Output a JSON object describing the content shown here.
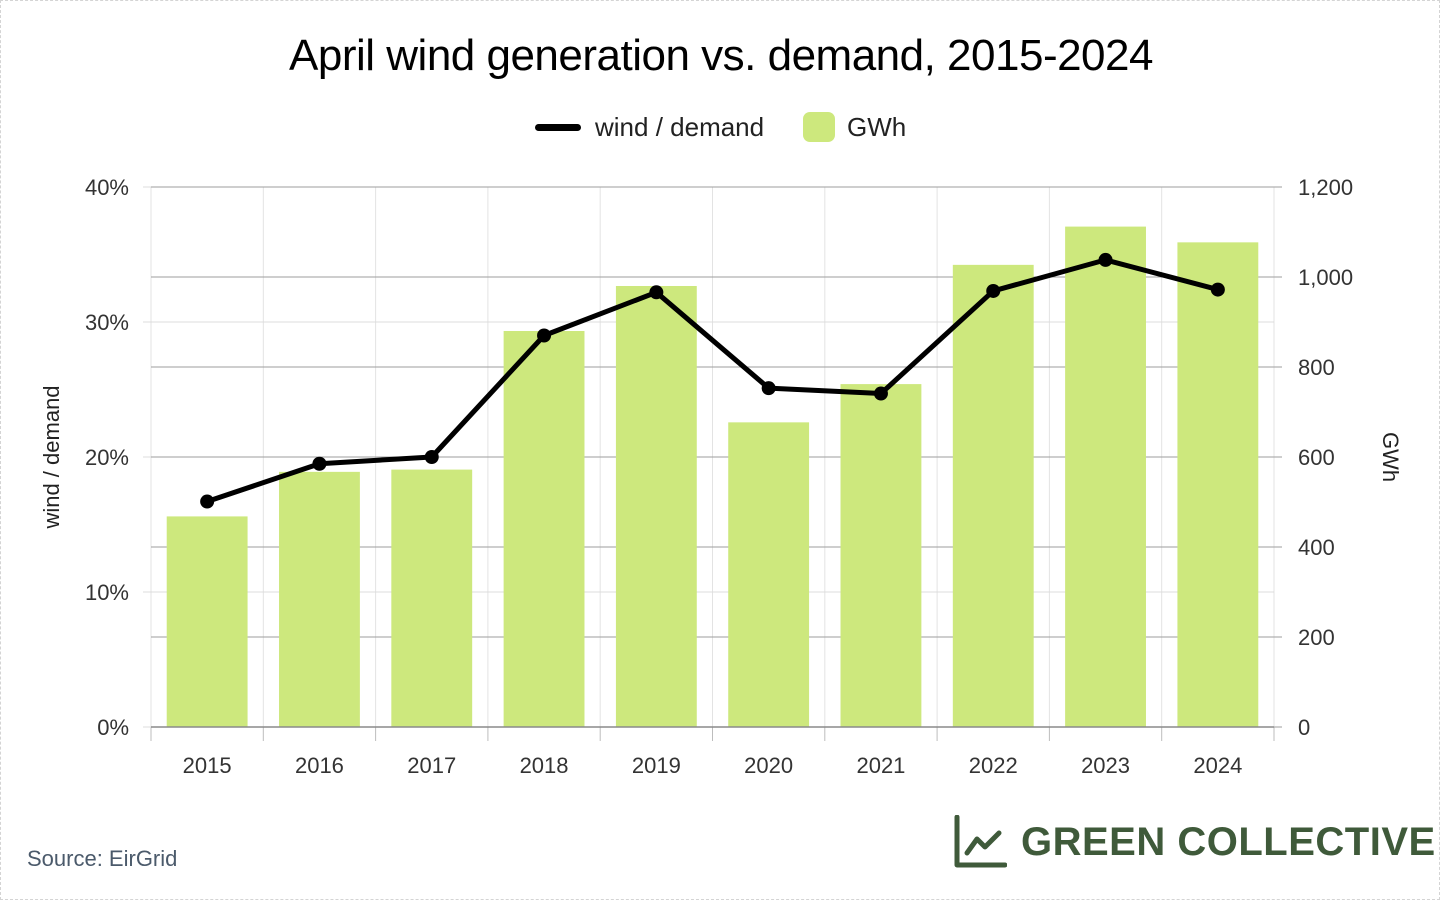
{
  "chart_data": {
    "type": "bar",
    "title": "April wind generation vs. demand, 2015-2024",
    "categories": [
      "2015",
      "2016",
      "2017",
      "2018",
      "2019",
      "2020",
      "2021",
      "2022",
      "2023",
      "2024"
    ],
    "series": [
      {
        "name": "GWh",
        "type": "bar",
        "axis": "right",
        "values": [
          468,
          567,
          572,
          880,
          980,
          677,
          762,
          1027,
          1112,
          1077
        ],
        "color": "#cde87d"
      },
      {
        "name": "wind / demand",
        "type": "line",
        "axis": "left",
        "values": [
          16.7,
          19.5,
          20.0,
          29.0,
          32.2,
          25.1,
          24.7,
          32.3,
          34.6,
          32.4
        ],
        "color": "#000000"
      }
    ],
    "ylabel_left": "wind / demand",
    "ylabel_right": "GWh",
    "ylim_left": [
      0,
      40
    ],
    "ylim_right": [
      0,
      1200
    ],
    "yticks_left": [
      "0%",
      "10%",
      "20%",
      "30%",
      "40%"
    ],
    "yticks_right": [
      "0",
      "200",
      "400",
      "600",
      "800",
      "1,000",
      "1,200"
    ],
    "grid": true,
    "legend_position": "top-center"
  },
  "source": "Source: EirGrid",
  "brand": {
    "name": "GREEN COLLECTIVE",
    "icon": "line-chart-icon",
    "color": "#3f5a3a"
  }
}
